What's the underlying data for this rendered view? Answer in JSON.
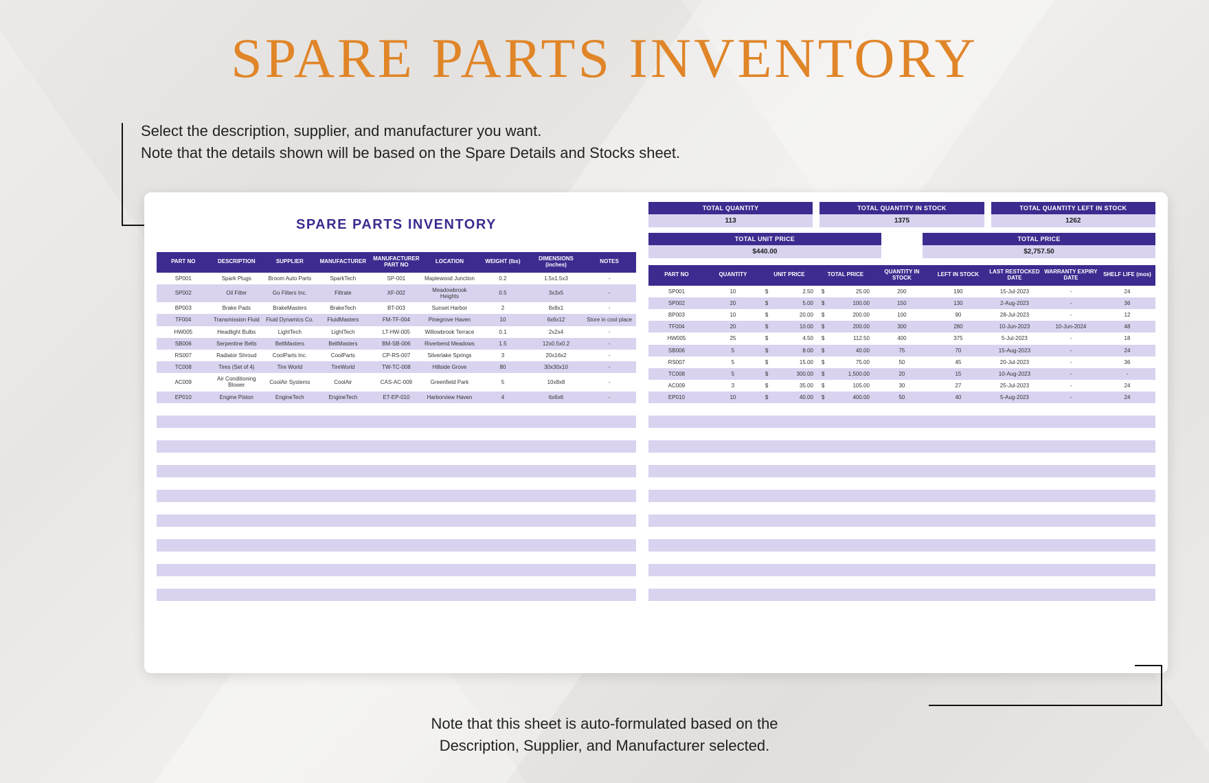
{
  "page": {
    "title": "SPARE PARTS INVENTORY",
    "top_note_line1": "Select the description, supplier, and manufacturer you want.",
    "top_note_line2": "Note that the details shown will be based on the Spare Details and Stocks sheet.",
    "bottom_note_line1": "Note that this sheet is auto-formulated based on the",
    "bottom_note_line2": "Description, Supplier, and Manufacturer selected."
  },
  "colors": {
    "title": "#e08528",
    "header_bg": "#3d2b8f",
    "header_text": "#ffffff",
    "row_alt_bg": "#d9d3f0",
    "row_bg": "#ffffff",
    "text": "#222222"
  },
  "sheet": {
    "title": "SPARE PARTS INVENTORY",
    "summary": {
      "total_quantity": {
        "label": "TOTAL QUANTITY",
        "value": "113"
      },
      "total_quantity_in_stock": {
        "label": "TOTAL QUANTITY IN STOCK",
        "value": "1375"
      },
      "total_quantity_left_in_stock": {
        "label": "TOTAL QUANTITY LEFT IN STOCK",
        "value": "1262"
      },
      "total_unit_price": {
        "label": "TOTAL UNIT PRICE",
        "value": "$440.00"
      },
      "total_price": {
        "label": "TOTAL PRICE",
        "value": "$2,757.50"
      }
    },
    "left_table": {
      "columns": [
        "PART NO",
        "DESCRIPTION",
        "SUPPLIER",
        "MANUFACTURER",
        "MANUFACTURER PART NO",
        "LOCATION",
        "WEIGHT (lbs)",
        "DIMENSIONS (inches)",
        "NOTES"
      ],
      "rows": [
        [
          "SP001",
          "Spark Plugs",
          "Broom Auto Parts",
          "SparkTech",
          "SP-001",
          "Maplewood Junction",
          "0.2",
          "1.5x1.5x3",
          "-"
        ],
        [
          "SP002",
          "Oil Filter",
          "Go Filters Inc.",
          "Filtrate",
          "XF-002",
          "Meadowbrook Heights",
          "0.5",
          "3x3x5",
          "-"
        ],
        [
          "BP003",
          "Brake Pads",
          "BrakeMasters",
          "BrakeTech",
          "BT-003",
          "Sunset Harbor",
          "2",
          "8x8x1",
          "-"
        ],
        [
          "TF004",
          "Transmission Fluid",
          "Fluid Dynamics Co.",
          "FluidMasters",
          "FM-TF-004",
          "Pinegrove Haven",
          "10",
          "6x6x12",
          "Store in cool place"
        ],
        [
          "HW005",
          "Headlight Bulbs",
          "LightTech",
          "LightTech",
          "LT-HW-005",
          "Willowbrook Terrace",
          "0.1",
          "2x2x4",
          "-"
        ],
        [
          "SB006",
          "Serpentine Belts",
          "BeltMasters",
          "BeltMasters",
          "BM-SB-006",
          "Riverbend Meadows",
          "1.5",
          "12x0.5x0.2",
          "-"
        ],
        [
          "RS007",
          "Radiator Shroud",
          "CoolParts Inc.",
          "CoolParts",
          "CP-RS-007",
          "Silverlake Springs",
          "3",
          "20x16x2",
          "-"
        ],
        [
          "TC008",
          "Tires (Set of 4)",
          "Tire World",
          "TireWorld",
          "TW-TC-008",
          "Hillside Grove",
          "80",
          "30x30x10",
          "-"
        ],
        [
          "AC009",
          "Air Conditioning Blower",
          "CoolAir Systems",
          "CoolAir",
          "CAS-AC-009",
          "Greenfield Park",
          "5",
          "10x8x8",
          "-"
        ],
        [
          "EP010",
          "Engine Piston",
          "EngineTech",
          "EngineTech",
          "ET-EP-010",
          "Harborview Haven",
          "4",
          "6x6x6",
          "-"
        ]
      ]
    },
    "right_table": {
      "columns": [
        "PART NO",
        "QUANTITY",
        "UNIT PRICE",
        "TOTAL PRICE",
        "QUANTITY IN STOCK",
        "LEFT IN STOCK",
        "LAST RESTOCKED DATE",
        "WARRANTY EXPIRY DATE",
        "SHELF LIFE (mos)"
      ],
      "rows": [
        [
          "SP001",
          "10",
          "2.50",
          "25.00",
          "200",
          "190",
          "15-Jul-2023",
          "-",
          "24"
        ],
        [
          "SP002",
          "20",
          "5.00",
          "100.00",
          "150",
          "130",
          "2-Aug-2023",
          "-",
          "36"
        ],
        [
          "BP003",
          "10",
          "20.00",
          "200.00",
          "100",
          "90",
          "28-Jul-2023",
          "-",
          "12"
        ],
        [
          "TF004",
          "20",
          "10.00",
          "200.00",
          "300",
          "280",
          "10-Jun-2023",
          "10-Jun-2024",
          "48"
        ],
        [
          "HW005",
          "25",
          "4.50",
          "112.50",
          "400",
          "375",
          "5-Jul-2023",
          "-",
          "18"
        ],
        [
          "SB006",
          "5",
          "8.00",
          "40.00",
          "75",
          "70",
          "15-Aug-2023",
          "-",
          "24"
        ],
        [
          "RS007",
          "5",
          "15.00",
          "75.00",
          "50",
          "45",
          "20-Jul-2023",
          "-",
          "36"
        ],
        [
          "TC008",
          "5",
          "300.00",
          "1,500.00",
          "20",
          "15",
          "10-Aug-2023",
          "-",
          "-"
        ],
        [
          "AC009",
          "3",
          "35.00",
          "105.00",
          "30",
          "27",
          "25-Jul-2023",
          "-",
          "24"
        ],
        [
          "EP010",
          "10",
          "40.00",
          "400.00",
          "50",
          "40",
          "5-Aug-2023",
          "-",
          "24"
        ]
      ]
    },
    "empty_rows": 17
  }
}
